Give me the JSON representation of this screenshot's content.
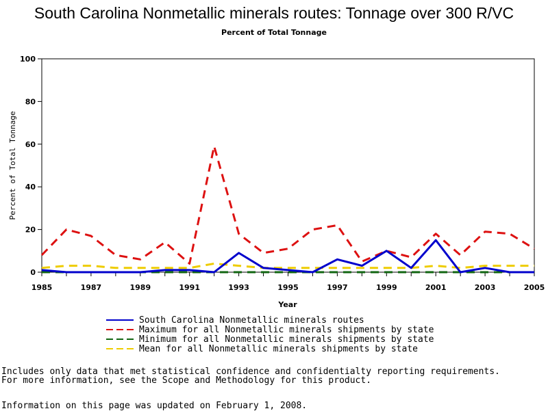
{
  "header": {
    "title": "South Carolina Nonmetallic minerals routes: Tonnage over 300 R/VC",
    "subtitle": "Percent of Total Tonnage"
  },
  "chart_data": {
    "type": "line",
    "x": [
      1985,
      1986,
      1987,
      1988,
      1989,
      1990,
      1991,
      1992,
      1993,
      1994,
      1995,
      1996,
      1997,
      1998,
      1999,
      2000,
      2001,
      2002,
      2003,
      2004,
      2005
    ],
    "xticks": [
      "1985",
      "1987",
      "1989",
      "1991",
      "1993",
      "1995",
      "1997",
      "1999",
      "2001",
      "2003",
      "2005"
    ],
    "yticks": [
      "0",
      "20",
      "40",
      "60",
      "80",
      "100"
    ],
    "xlabel": "Year",
    "ylabel": "Percent of Total Tonnage",
    "xlim": [
      1985,
      2005
    ],
    "ylim": [
      0,
      100
    ],
    "grid": false,
    "legend_position": "bottom",
    "series": [
      {
        "name": "South Carolina Nonmetallic minerals routes",
        "color": "#0000cc",
        "dash": "solid",
        "values": [
          1,
          0,
          0,
          0,
          0,
          1,
          1,
          0,
          9,
          2,
          1,
          0,
          6,
          3,
          10,
          2,
          15,
          0,
          2,
          0,
          0
        ]
      },
      {
        "name": "Maximum for all Nonmetallic minerals shipments by state",
        "color": "#dd1111",
        "dash": "dashed",
        "values": [
          8,
          20,
          17,
          8,
          6,
          14,
          4,
          59,
          18,
          9,
          11,
          20,
          22,
          5,
          10,
          7,
          18,
          8,
          19,
          18,
          11
        ]
      },
      {
        "name": "Minimum for all Nonmetallic minerals shipments by state",
        "color": "#116611",
        "dash": "dashed",
        "values": [
          0,
          0,
          0,
          0,
          0,
          0,
          0,
          0,
          0,
          0,
          0,
          0,
          0,
          0,
          0,
          0,
          0,
          0,
          0,
          0,
          0
        ]
      },
      {
        "name": "Mean for all Nonmetallic minerals shipments by state",
        "color": "#eecc00",
        "dash": "dashed",
        "values": [
          2,
          3,
          3,
          2,
          2,
          2,
          2,
          4,
          3,
          2,
          2,
          2,
          2,
          2,
          2,
          2,
          3,
          2,
          3,
          3,
          3
        ]
      }
    ]
  },
  "footnotes": {
    "line1": "Includes only data that met statistical confidence and confidentialty reporting requirements.",
    "line2": "For more information, see the Scope and Methodology for this product.",
    "line3": "Information on this page was updated on February 1, 2008."
  }
}
